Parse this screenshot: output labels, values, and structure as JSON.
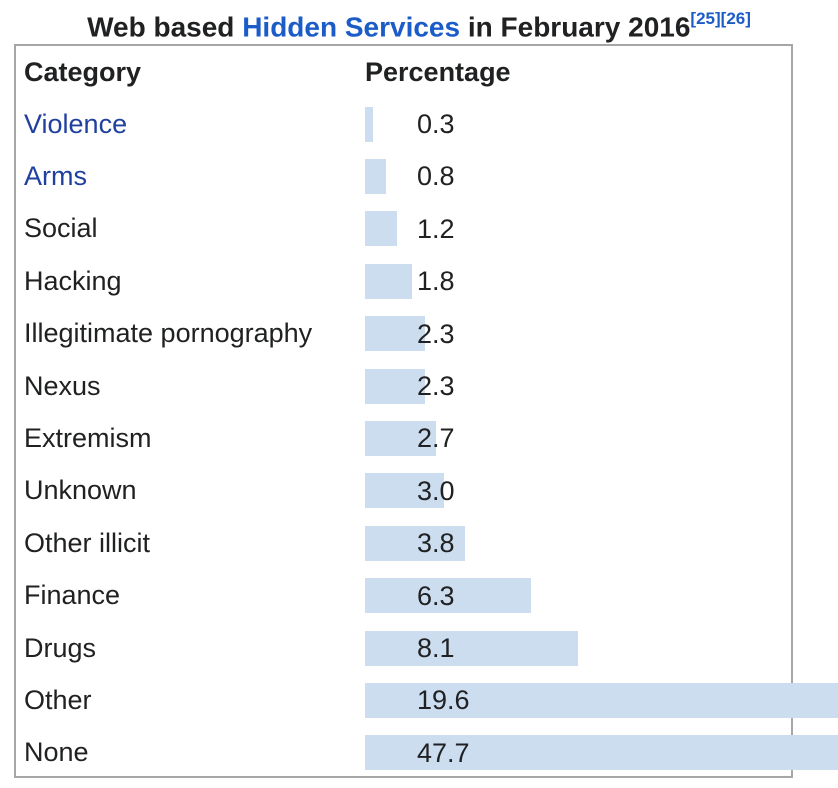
{
  "title": {
    "prefix": "Web based ",
    "link_text": "Hidden Services",
    "suffix": " in February 2016",
    "refs": [
      "[25]",
      "[26]"
    ]
  },
  "table": {
    "headers": {
      "category": "Category",
      "percentage": "Percentage"
    }
  },
  "chart_data": {
    "type": "bar",
    "orientation": "horizontal",
    "title": "Web based Hidden Services in February 2016",
    "xlabel": "Percentage",
    "ylabel": "Category",
    "unit": "percent",
    "categories": [
      "Violence",
      "Arms",
      "Social",
      "Hacking",
      "Illegitimate pornography",
      "Nexus",
      "Extremism",
      "Unknown",
      "Other illicit",
      "Finance",
      "Drugs",
      "Other",
      "None"
    ],
    "values": [
      0.3,
      0.8,
      1.2,
      1.8,
      2.3,
      2.3,
      2.7,
      3.0,
      3.8,
      6.3,
      8.1,
      19.6,
      47.7
    ],
    "value_labels": [
      "0.3",
      "0.8",
      "1.2",
      "1.8",
      "2.3",
      "2.3",
      "2.7",
      "3.0",
      "3.8",
      "6.3",
      "8.1",
      "19.6",
      "47.7"
    ],
    "linked_categories": [
      "Violence",
      "Arms"
    ],
    "bars_clipped_at_right_edge": [
      "Other",
      "None"
    ],
    "legend": "none",
    "grid": false
  },
  "colors": {
    "bar": "#cdddf0",
    "title_link": "#1b5cc8",
    "row_link": "#2040a0",
    "text": "#202122",
    "table_border": "#a6a6a6",
    "background": "#ffffff"
  }
}
